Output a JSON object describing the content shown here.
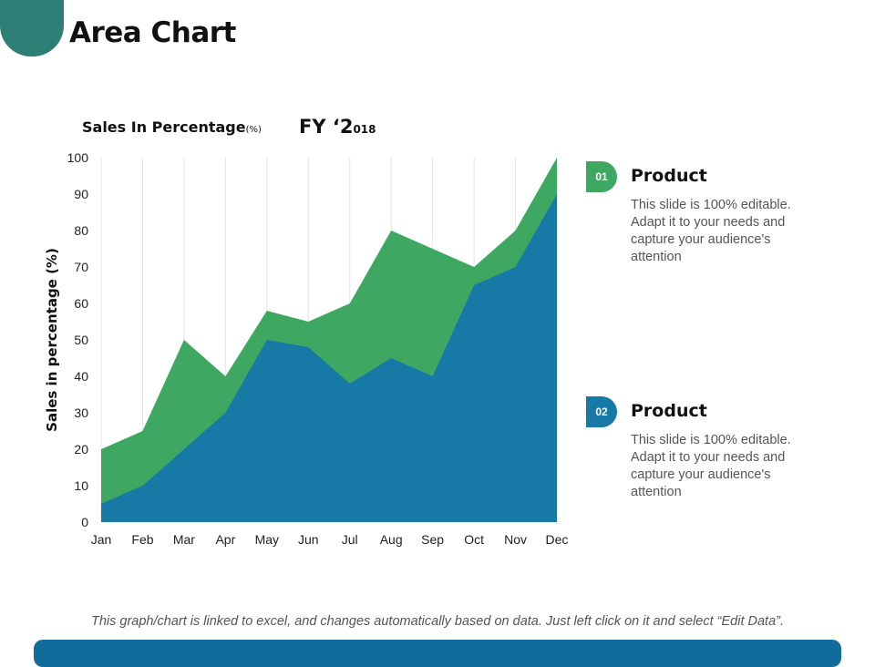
{
  "slide": {
    "title": "Area Chart",
    "chart_heading": "Sales In Percentage",
    "chart_heading_unit": "(%)",
    "fy_prefix": "FY ‘2",
    "fy_suffix": "018",
    "footnote": "This graph/chart is linked to excel, and changes automatically based on data. Just left click on it and select “Edit Data”."
  },
  "legend": [
    {
      "number": "01",
      "title": "Product",
      "description": "This slide is 100% editable. Adapt it to your needs and capture your audience's attention",
      "color": "#3ea862"
    },
    {
      "number": "02",
      "title": "Product",
      "description": "This slide is 100% editable. Adapt it to your needs and capture your audience's attention",
      "color": "#1679a6"
    }
  ],
  "colors": {
    "accent_teal": "#2b7f74",
    "series_green": "#3ea862",
    "series_blue": "#1679a6",
    "bar_blue": "#116c9b"
  },
  "chart_data": {
    "type": "area",
    "title": "Sales In Percentage(%)",
    "ylabel": "Sales in percentage (%)",
    "xlabel": "",
    "categories": [
      "Jan",
      "Feb",
      "Mar",
      "Apr",
      "May",
      "Jun",
      "Jul",
      "Aug",
      "Sep",
      "Oct",
      "Nov",
      "Dec"
    ],
    "yticks": [
      0,
      10,
      20,
      30,
      40,
      50,
      60,
      70,
      80,
      90,
      100
    ],
    "ylim": [
      0,
      100
    ],
    "grid": "vertical",
    "series": [
      {
        "name": "Product 01",
        "color": "#3ea862",
        "values": [
          20,
          25,
          50,
          40,
          58,
          55,
          60,
          80,
          75,
          70,
          80,
          100
        ]
      },
      {
        "name": "Product 02",
        "color": "#1679a6",
        "values": [
          5,
          10,
          20,
          30,
          50,
          48,
          38,
          45,
          40,
          65,
          70,
          90
        ]
      }
    ]
  }
}
